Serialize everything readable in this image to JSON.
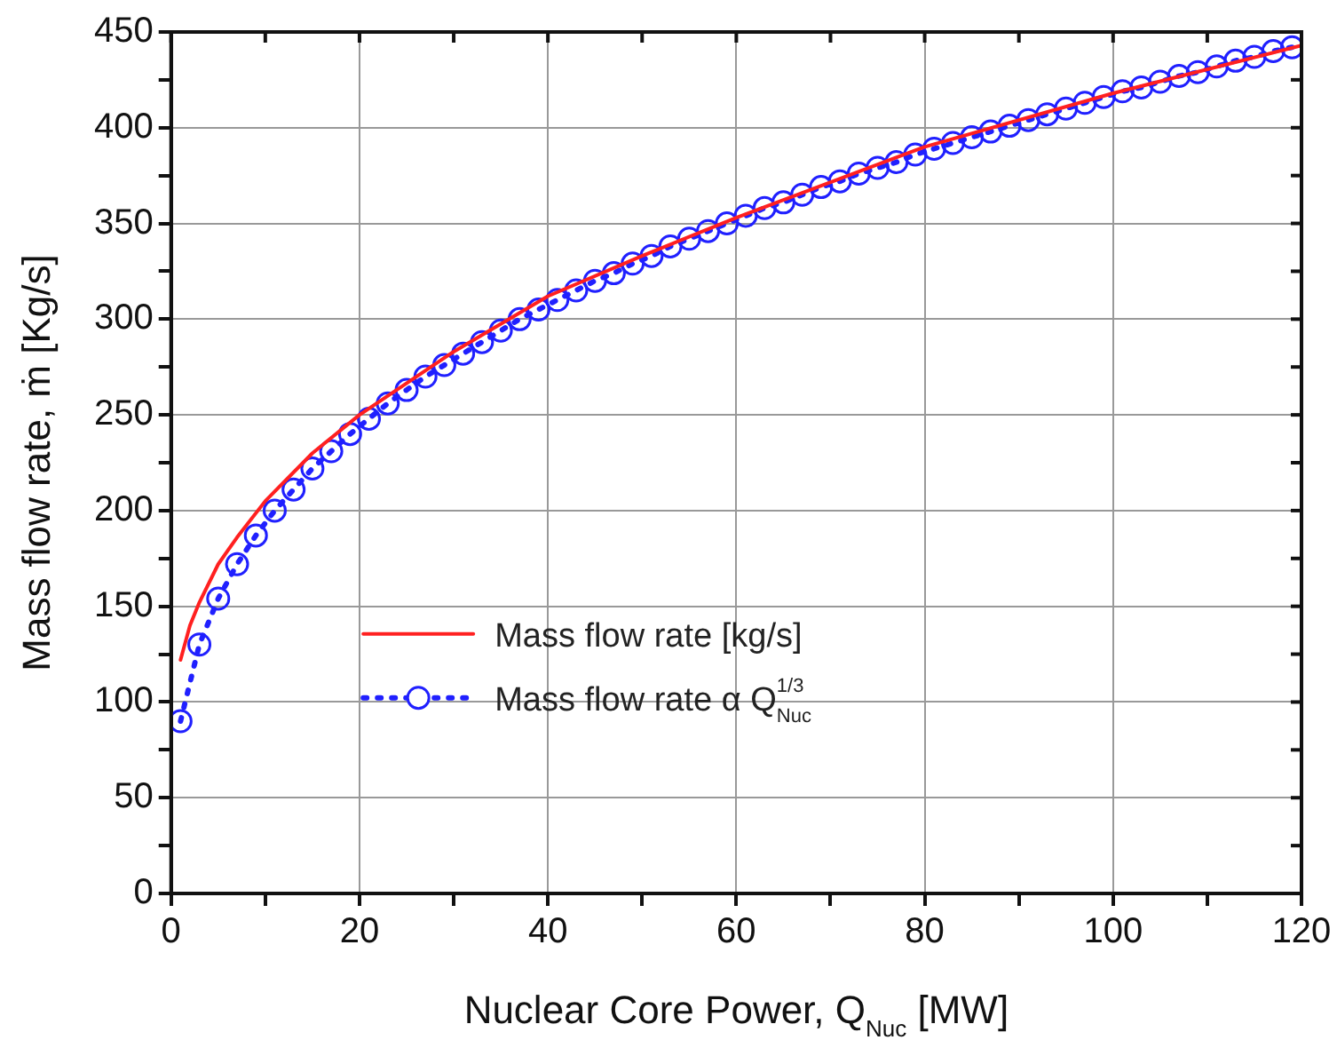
{
  "chart_data": {
    "type": "line",
    "xlabel": "Nuclear Core Power, Q$_{Nuc}$ [MW]",
    "ylabel": "Mass flow rate, ṁ [Kg/s]",
    "xlim": [
      0,
      120
    ],
    "xticks": [
      0,
      {
        "value": 10,
        "label": null
      },
      20,
      {
        "value": 30,
        "label": null
      },
      40,
      {
        "value": 50,
        "label": null
      },
      60,
      {
        "value": 70,
        "label": null
      },
      80,
      {
        "value": 90,
        "label": null
      },
      100,
      {
        "value": 110,
        "label": null
      },
      120
    ],
    "ylim": [
      0,
      450
    ],
    "yticks": [
      0,
      {
        "value": 25,
        "label": null
      },
      50,
      {
        "value": 75,
        "label": null
      },
      100,
      {
        "value": 125,
        "label": null
      },
      150,
      {
        "value": 175,
        "label": null
      },
      200,
      {
        "value": 225,
        "label": null
      },
      250,
      {
        "value": 275,
        "label": null
      },
      300,
      {
        "value": 325,
        "label": null
      },
      350,
      {
        "value": 375,
        "label": null
      },
      400,
      {
        "value": 425,
        "label": null
      },
      450
    ],
    "grid": true,
    "legend": "bottom left",
    "series": [
      {
        "name": "Mass flow rate [kg/s]",
        "color": "#ff2020",
        "marker": "none",
        "line_style": "solid",
        "x": [
          1,
          2,
          3,
          5,
          7,
          10,
          15,
          20,
          30,
          40,
          50,
          60,
          80,
          100,
          120
        ],
        "values": [
          122,
          140,
          152,
          172,
          186,
          205,
          230,
          250,
          283,
          312,
          333,
          353,
          390,
          418,
          443
        ]
      },
      {
        "name": "Mass flow rate α Q$_{Nuc}$$^{1/3}$",
        "color": "#2020ff",
        "marker": "circle",
        "line_style": "dotted",
        "x": [
          1,
          3,
          5,
          7,
          9,
          11,
          13,
          15,
          17,
          19,
          21,
          23,
          25,
          27,
          29,
          31,
          33,
          35,
          37,
          39,
          41,
          43,
          45,
          47,
          49,
          51,
          53,
          55,
          57,
          59,
          61,
          63,
          65,
          67,
          69,
          71,
          73,
          75,
          77,
          79,
          81,
          83,
          85,
          87,
          89,
          91,
          93,
          95,
          97,
          99,
          101,
          103,
          105,
          107,
          109,
          111,
          113,
          115,
          117,
          119
        ],
        "values": [
          90,
          130,
          154,
          172,
          187,
          200,
          211,
          222,
          231,
          240,
          248,
          256,
          263,
          270,
          276,
          282,
          288,
          294,
          300,
          305,
          310,
          315,
          320,
          324,
          329,
          333,
          338,
          342,
          346,
          350,
          354,
          358,
          361,
          365,
          369,
          372,
          376,
          379,
          382,
          386,
          389,
          392,
          395,
          398,
          401,
          404,
          407,
          410,
          413,
          416,
          419,
          421,
          424,
          427,
          429,
          432,
          435,
          437,
          440,
          442
        ]
      }
    ]
  }
}
